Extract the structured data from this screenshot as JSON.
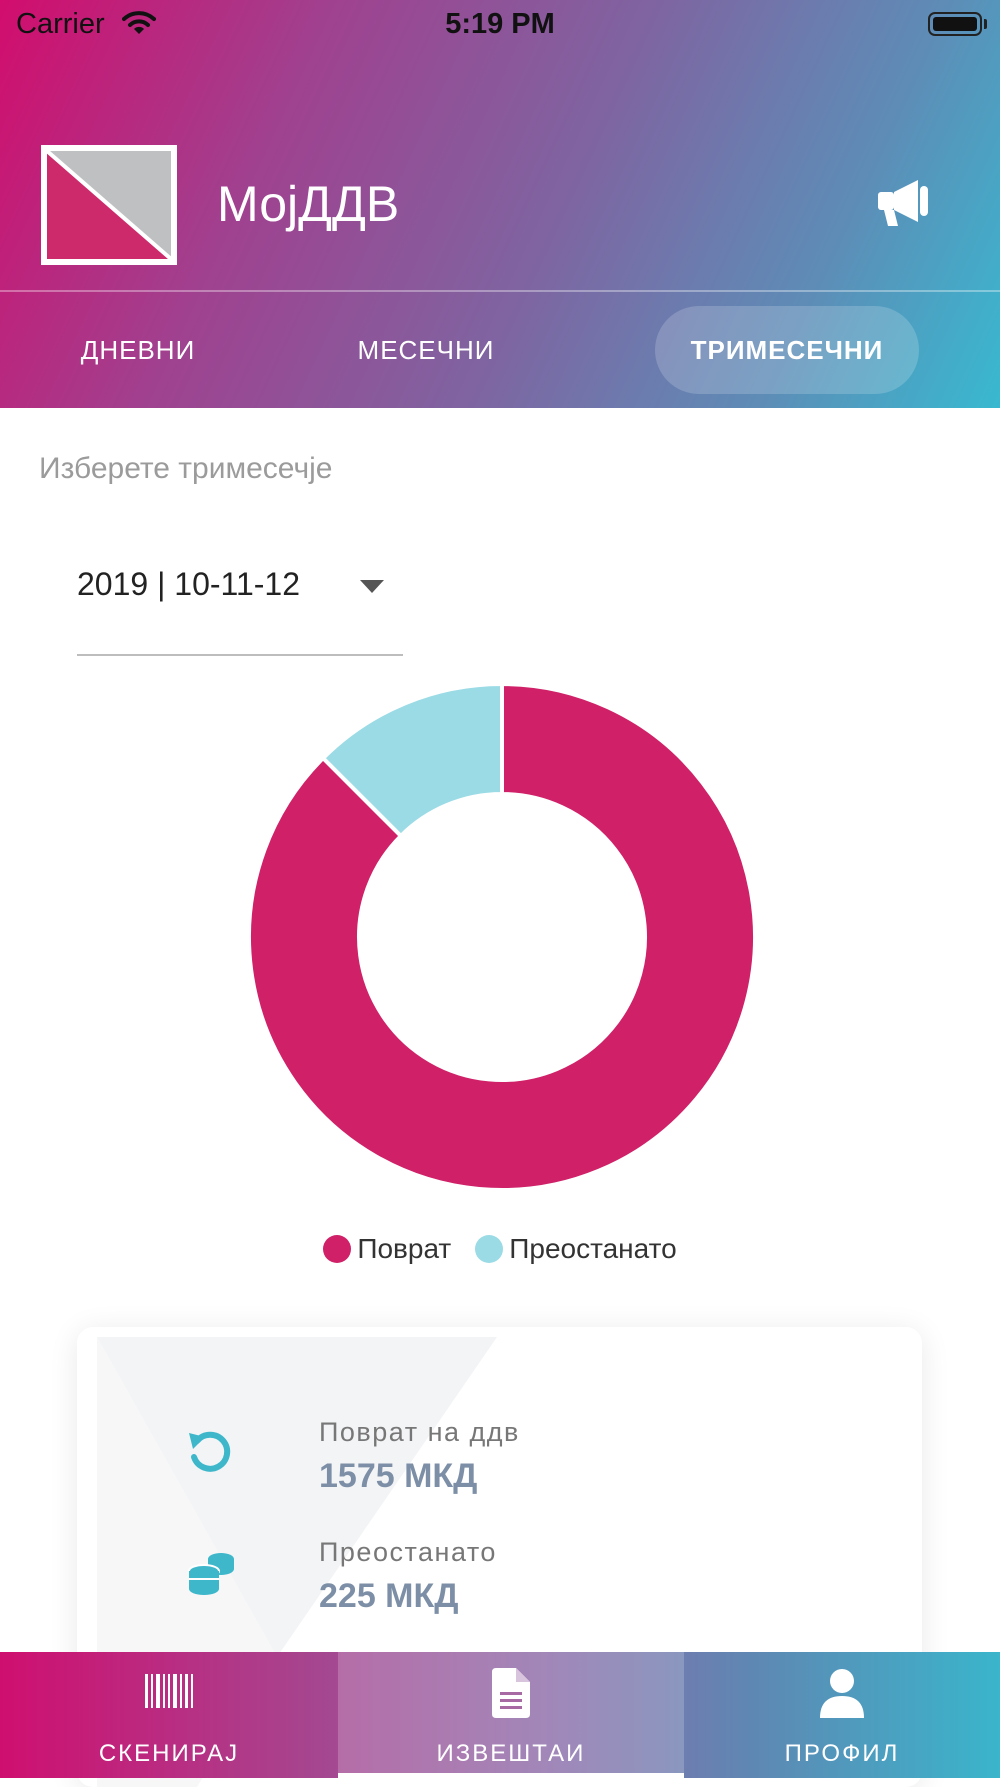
{
  "status_bar": {
    "carrier": "Carrier",
    "time": "5:19 PM"
  },
  "header": {
    "app_title": "МојДДВ",
    "tabs": [
      {
        "label": "ДНЕВНИ",
        "active": false
      },
      {
        "label": "МЕСЕЧНИ",
        "active": false
      },
      {
        "label": "ТРИМЕСЕЧНИ",
        "active": true
      }
    ],
    "announcement_icon": "megaphone-icon"
  },
  "quarter_select": {
    "label": "Изберете тримесечје",
    "value": "2019 | 10-11-12"
  },
  "chart_data": {
    "type": "pie",
    "style": "donut",
    "categories": [
      "Поврат",
      "Преостанато"
    ],
    "values": [
      1575,
      225
    ],
    "colors": [
      "#cf2068",
      "#9adbe5"
    ],
    "legend_position": "bottom"
  },
  "stats": [
    {
      "label": "Поврат на ддв",
      "value": "1575 МКД",
      "icon": "refresh-icon"
    },
    {
      "label": "Преостанато",
      "value": "225 МКД",
      "icon": "coins-icon"
    }
  ],
  "bottom_nav": [
    {
      "label": "СКЕНИРАЈ",
      "icon": "barcode-icon",
      "active": false
    },
    {
      "label": "ИЗВЕШТАИ",
      "icon": "document-icon",
      "active": true
    },
    {
      "label": "ПРОФИЛ",
      "icon": "user-icon",
      "active": false
    }
  ],
  "colors": {
    "accent_magenta": "#cf2068",
    "accent_cyan": "#38b9d0",
    "stat_value": "#7d8fa6"
  }
}
